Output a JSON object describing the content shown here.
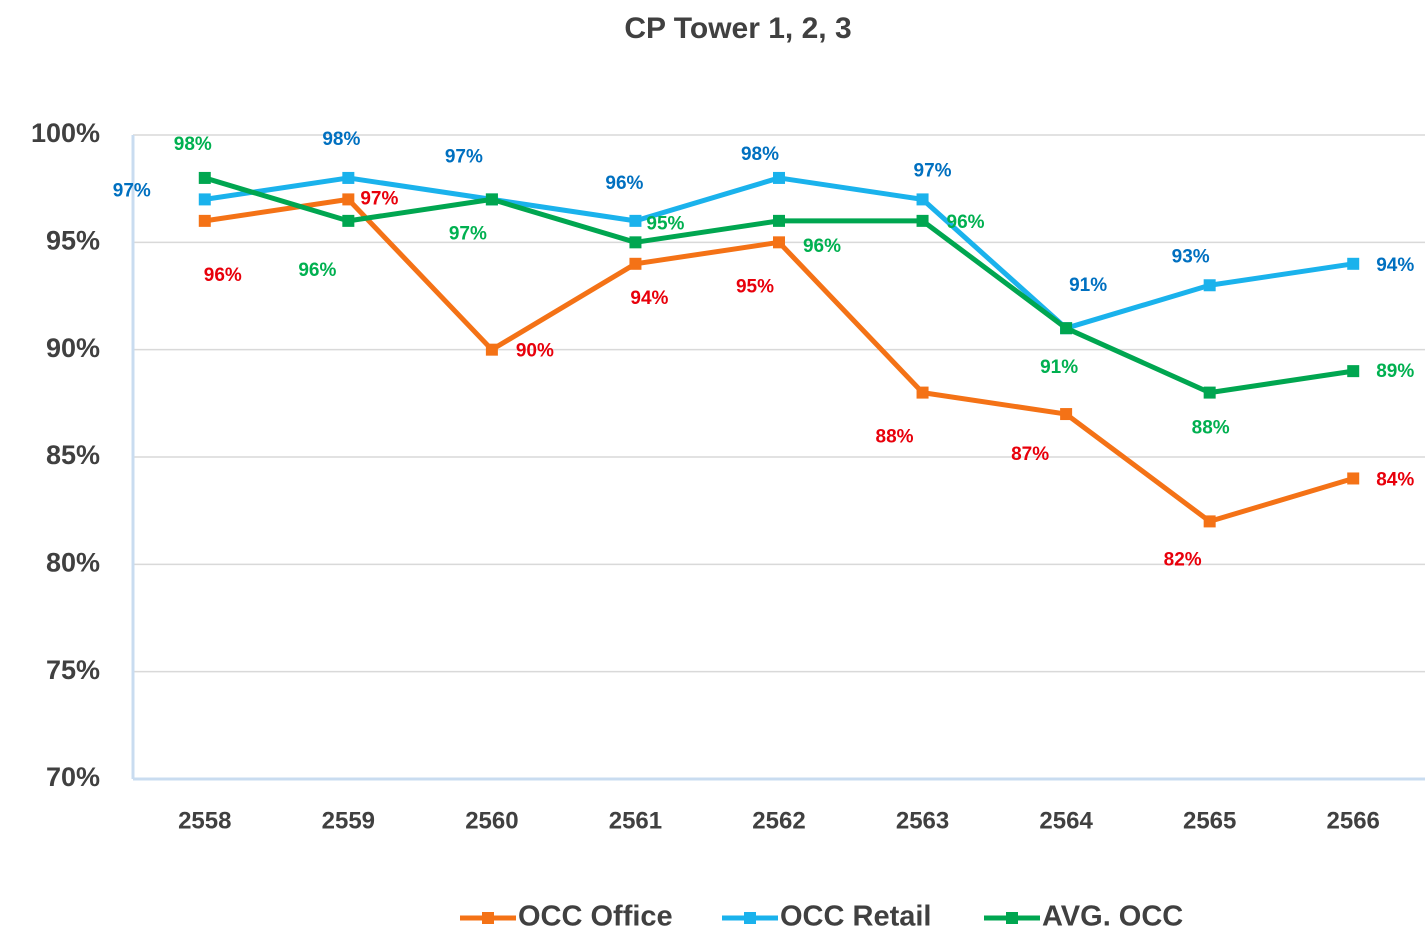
{
  "chart_data": {
    "type": "line",
    "title": "CP Tower 1, 2, 3",
    "categories": [
      "2558",
      "2559",
      "2560",
      "2561",
      "2562",
      "2563",
      "2564",
      "2565",
      "2566"
    ],
    "series": [
      {
        "name": "OCC Office",
        "color": "#f47216",
        "label_color": "#e8000b",
        "values": [
          96,
          97,
          90,
          94,
          95,
          88,
          87,
          82,
          84
        ],
        "value_labels": [
          "96%",
          "97%",
          "90%",
          "94%",
          "95%",
          "88%",
          "87%",
          "82%",
          "84%"
        ]
      },
      {
        "name": "OCC Retail",
        "color": "#1ab2ec",
        "label_color": "#0070c0",
        "values": [
          97,
          98,
          97,
          96,
          98,
          97,
          91,
          93,
          94
        ],
        "value_labels": [
          "97%",
          "98%",
          "97%",
          "96%",
          "98%",
          "97%",
          "91%",
          "93%",
          "94%"
        ]
      },
      {
        "name": "AVG. OCC",
        "color": "#00a650",
        "label_color": "#00b050",
        "values": [
          98,
          96,
          97,
          95,
          96,
          96,
          91,
          88,
          89
        ],
        "value_labels": [
          "98%",
          "96%",
          "97%",
          "95%",
          "96%",
          "96%",
          "91%",
          "88%",
          "89%"
        ]
      }
    ],
    "ylim": [
      70,
      100
    ],
    "yticks": [
      {
        "value": 70,
        "label": "70%"
      },
      {
        "value": 75,
        "label": "75%"
      },
      {
        "value": 80,
        "label": "80%"
      },
      {
        "value": 85,
        "label": "85%"
      },
      {
        "value": 90,
        "label": "90%"
      },
      {
        "value": 95,
        "label": "95%"
      },
      {
        "value": 100,
        "label": "100%"
      }
    ],
    "grid": true,
    "legend": "bottom"
  }
}
